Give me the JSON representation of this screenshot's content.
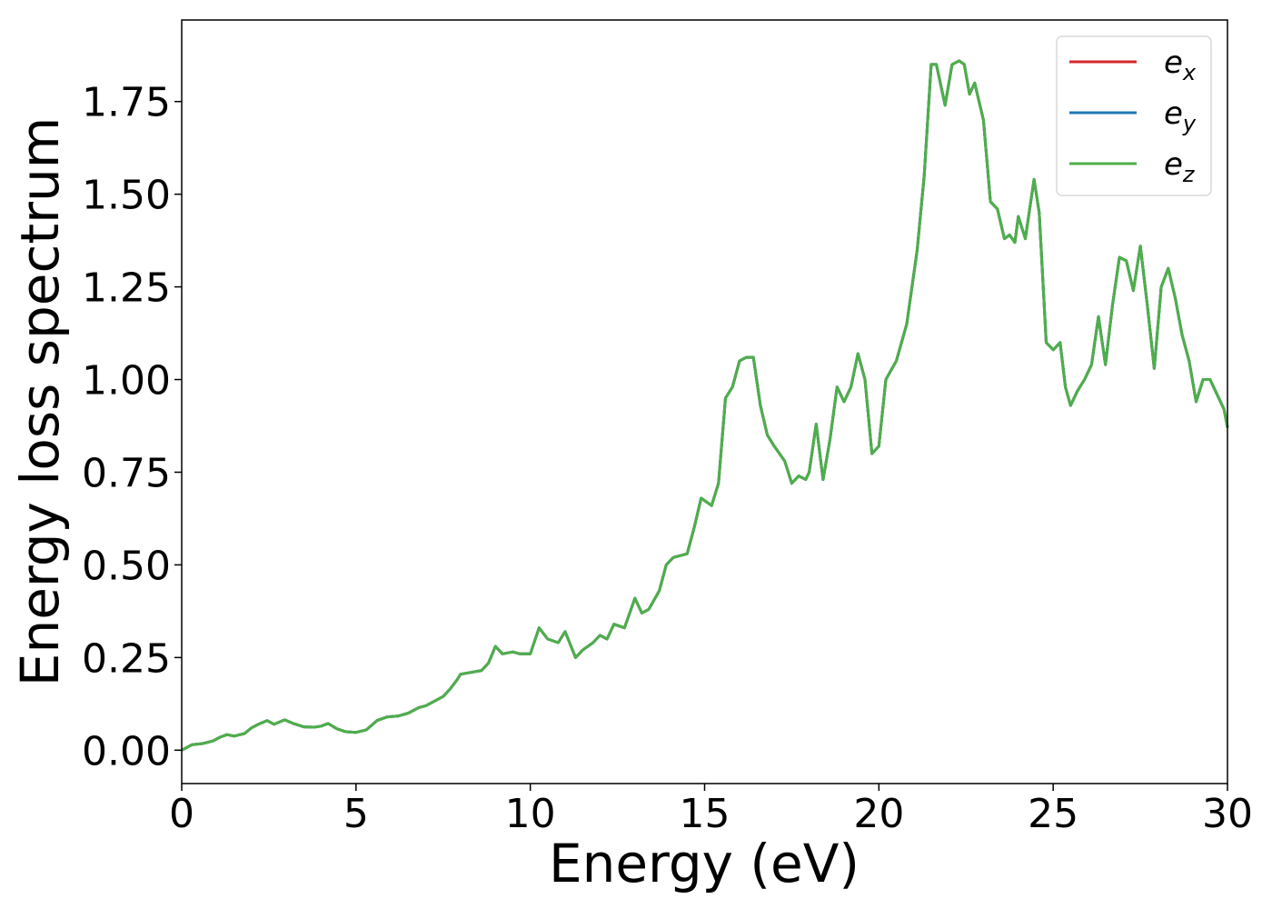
{
  "chart_data": {
    "type": "line",
    "title": "",
    "xlabel": "Energy (eV)",
    "ylabel": "Energy loss spectrum",
    "xlim": [
      0,
      30
    ],
    "ylim": [
      -0.09,
      1.97
    ],
    "xticks": [
      0,
      5,
      10,
      15,
      20,
      25,
      30
    ],
    "xtick_labels": [
      "0",
      "5",
      "10",
      "15",
      "20",
      "25",
      "30"
    ],
    "yticks": [
      0,
      0.25,
      0.5,
      0.75,
      1.0,
      1.25,
      1.5,
      1.75
    ],
    "ytick_labels": [
      "0.00",
      "0.25",
      "0.50",
      "0.75",
      "1.00",
      "1.25",
      "1.50",
      "1.75"
    ],
    "grid": false,
    "legend_position": "top-right",
    "x": [
      0,
      0.3,
      0.6,
      0.9,
      1.1,
      1.3,
      1.5,
      1.8,
      2.0,
      2.2,
      2.45,
      2.65,
      2.95,
      3.2,
      3.5,
      3.8,
      4.0,
      4.2,
      4.45,
      4.7,
      5.0,
      5.3,
      5.6,
      5.9,
      6.2,
      6.5,
      6.8,
      7.0,
      7.3,
      7.5,
      7.7,
      7.9,
      8.0,
      8.3,
      8.6,
      8.8,
      9.0,
      9.2,
      9.5,
      9.7,
      10.0,
      10.25,
      10.5,
      10.8,
      11.0,
      11.3,
      11.5,
      11.8,
      12.0,
      12.2,
      12.4,
      12.7,
      13.0,
      13.2,
      13.4,
      13.7,
      13.9,
      14.1,
      14.5,
      14.7,
      14.9,
      15.2,
      15.4,
      15.6,
      15.8,
      16.0,
      16.2,
      16.4,
      16.6,
      16.8,
      17.0,
      17.3,
      17.5,
      17.7,
      17.9,
      18.0,
      18.2,
      18.4,
      18.6,
      18.8,
      19.0,
      19.2,
      19.4,
      19.6,
      19.8,
      20.0,
      20.2,
      20.5,
      20.8,
      21.1,
      21.3,
      21.5,
      21.65,
      21.9,
      22.1,
      22.3,
      22.45,
      22.6,
      22.75,
      23.0,
      23.2,
      23.4,
      23.6,
      23.75,
      23.9,
      24.0,
      24.2,
      24.45,
      24.6,
      24.8,
      25.0,
      25.2,
      25.35,
      25.5,
      25.7,
      25.9,
      26.1,
      26.3,
      26.5,
      26.7,
      26.9,
      27.1,
      27.3,
      27.5,
      27.7,
      27.9,
      28.1,
      28.3,
      28.5,
      28.7,
      28.9,
      29.1,
      29.3,
      29.5,
      29.7,
      29.9,
      30.0
    ],
    "series": [
      {
        "name": "e_x",
        "color": "#d62728",
        "values": [
          0.0,
          0.015,
          0.018,
          0.025,
          0.035,
          0.042,
          0.038,
          0.045,
          0.06,
          0.07,
          0.08,
          0.07,
          0.082,
          0.072,
          0.063,
          0.062,
          0.065,
          0.072,
          0.058,
          0.05,
          0.048,
          0.055,
          0.08,
          0.09,
          0.092,
          0.1,
          0.115,
          0.12,
          0.135,
          0.145,
          0.165,
          0.19,
          0.205,
          0.21,
          0.215,
          0.235,
          0.28,
          0.26,
          0.265,
          0.26,
          0.26,
          0.33,
          0.3,
          0.29,
          0.32,
          0.25,
          0.27,
          0.29,
          0.31,
          0.3,
          0.34,
          0.33,
          0.41,
          0.37,
          0.38,
          0.43,
          0.5,
          0.52,
          0.53,
          0.6,
          0.68,
          0.66,
          0.72,
          0.95,
          0.98,
          1.05,
          1.06,
          1.06,
          0.93,
          0.85,
          0.82,
          0.78,
          0.72,
          0.74,
          0.73,
          0.75,
          0.88,
          0.73,
          0.84,
          0.98,
          0.94,
          0.98,
          1.07,
          1.0,
          0.8,
          0.82,
          1.0,
          1.05,
          1.15,
          1.35,
          1.55,
          1.85,
          1.85,
          1.74,
          1.85,
          1.86,
          1.85,
          1.77,
          1.8,
          1.7,
          1.48,
          1.46,
          1.38,
          1.39,
          1.37,
          1.44,
          1.38,
          1.54,
          1.45,
          1.1,
          1.08,
          1.1,
          0.98,
          0.93,
          0.97,
          1.0,
          1.04,
          1.17,
          1.04,
          1.2,
          1.33,
          1.32,
          1.24,
          1.36,
          1.2,
          1.03,
          1.25,
          1.3,
          1.22,
          1.12,
          1.05,
          0.94,
          1.0,
          1.0,
          0.96,
          0.92,
          0.87
        ]
      },
      {
        "name": "e_y",
        "color": "#1f77b4",
        "values": [
          0.0,
          0.015,
          0.018,
          0.025,
          0.035,
          0.042,
          0.038,
          0.045,
          0.06,
          0.07,
          0.08,
          0.07,
          0.082,
          0.072,
          0.063,
          0.062,
          0.065,
          0.072,
          0.058,
          0.05,
          0.048,
          0.055,
          0.08,
          0.09,
          0.092,
          0.1,
          0.115,
          0.12,
          0.135,
          0.145,
          0.165,
          0.19,
          0.205,
          0.21,
          0.215,
          0.235,
          0.28,
          0.26,
          0.265,
          0.26,
          0.26,
          0.33,
          0.3,
          0.29,
          0.32,
          0.25,
          0.27,
          0.29,
          0.31,
          0.3,
          0.34,
          0.33,
          0.41,
          0.37,
          0.38,
          0.43,
          0.5,
          0.52,
          0.53,
          0.6,
          0.68,
          0.66,
          0.72,
          0.95,
          0.98,
          1.05,
          1.06,
          1.06,
          0.93,
          0.85,
          0.82,
          0.78,
          0.72,
          0.74,
          0.73,
          0.75,
          0.88,
          0.73,
          0.84,
          0.98,
          0.94,
          0.98,
          1.07,
          1.0,
          0.8,
          0.82,
          1.0,
          1.05,
          1.15,
          1.35,
          1.55,
          1.85,
          1.85,
          1.74,
          1.85,
          1.86,
          1.85,
          1.77,
          1.8,
          1.7,
          1.48,
          1.46,
          1.38,
          1.39,
          1.37,
          1.44,
          1.38,
          1.54,
          1.45,
          1.1,
          1.08,
          1.1,
          0.98,
          0.93,
          0.97,
          1.0,
          1.04,
          1.17,
          1.04,
          1.2,
          1.33,
          1.32,
          1.24,
          1.36,
          1.2,
          1.03,
          1.25,
          1.3,
          1.22,
          1.12,
          1.05,
          0.94,
          1.0,
          1.0,
          0.96,
          0.92,
          0.87
        ]
      },
      {
        "name": "e_z",
        "color": "#4daf4a",
        "values": [
          0.0,
          0.015,
          0.018,
          0.025,
          0.035,
          0.042,
          0.038,
          0.045,
          0.06,
          0.07,
          0.08,
          0.07,
          0.082,
          0.072,
          0.063,
          0.062,
          0.065,
          0.072,
          0.058,
          0.05,
          0.048,
          0.055,
          0.08,
          0.09,
          0.092,
          0.1,
          0.115,
          0.12,
          0.135,
          0.145,
          0.165,
          0.19,
          0.205,
          0.21,
          0.215,
          0.235,
          0.28,
          0.26,
          0.265,
          0.26,
          0.26,
          0.33,
          0.3,
          0.29,
          0.32,
          0.25,
          0.27,
          0.29,
          0.31,
          0.3,
          0.34,
          0.33,
          0.41,
          0.37,
          0.38,
          0.43,
          0.5,
          0.52,
          0.53,
          0.6,
          0.68,
          0.66,
          0.72,
          0.95,
          0.98,
          1.05,
          1.06,
          1.06,
          0.93,
          0.85,
          0.82,
          0.78,
          0.72,
          0.74,
          0.73,
          0.75,
          0.88,
          0.73,
          0.84,
          0.98,
          0.94,
          0.98,
          1.07,
          1.0,
          0.8,
          0.82,
          1.0,
          1.05,
          1.15,
          1.35,
          1.55,
          1.85,
          1.85,
          1.74,
          1.85,
          1.86,
          1.85,
          1.77,
          1.8,
          1.7,
          1.48,
          1.46,
          1.38,
          1.39,
          1.37,
          1.44,
          1.38,
          1.54,
          1.45,
          1.1,
          1.08,
          1.1,
          0.98,
          0.93,
          0.97,
          1.0,
          1.04,
          1.17,
          1.04,
          1.2,
          1.33,
          1.32,
          1.24,
          1.36,
          1.2,
          1.03,
          1.25,
          1.3,
          1.22,
          1.12,
          1.05,
          0.94,
          1.0,
          1.0,
          0.96,
          0.92,
          0.87
        ]
      }
    ],
    "legend": [
      {
        "base": "e",
        "sub": "x",
        "color": "#d62728"
      },
      {
        "base": "e",
        "sub": "y",
        "color": "#1f77b4"
      },
      {
        "base": "e",
        "sub": "z",
        "color": "#4daf4a"
      }
    ]
  }
}
